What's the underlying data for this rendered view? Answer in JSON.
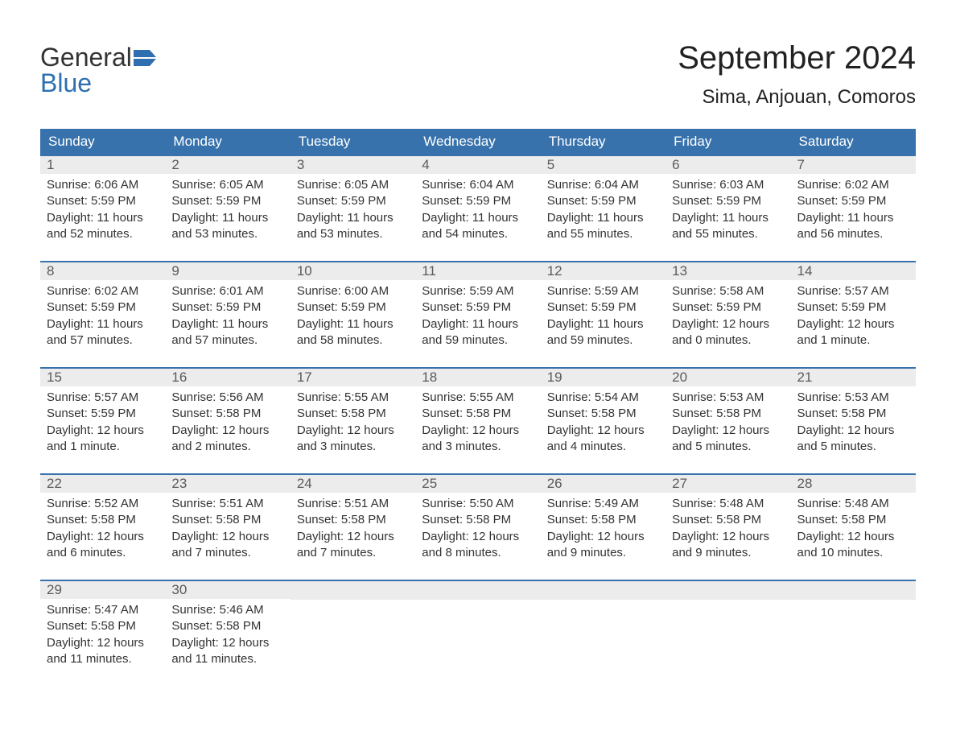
{
  "logo": {
    "word1": "General",
    "word2": "Blue"
  },
  "title": {
    "month": "September 2024",
    "location": "Sima, Anjouan, Comoros"
  },
  "labels": {
    "sunrise": "Sunrise:",
    "sunset": "Sunset:",
    "daylight_prefix": "Daylight:"
  },
  "colors": {
    "header_bg": "#3872ac",
    "header_text": "#ffffff",
    "day_number_bg": "#ececec",
    "day_number_text": "#5a5a5a",
    "body_text": "#333333",
    "border": "#3872ac",
    "logo_blue": "#2f6faf",
    "background": "#ffffff"
  },
  "typography": {
    "title_month_fontsize": 40,
    "title_location_fontsize": 24,
    "header_fontsize": 17,
    "day_number_fontsize": 17,
    "day_content_fontsize": 15,
    "logo_fontsize": 32
  },
  "calendar": {
    "type": "table",
    "day_headers": [
      "Sunday",
      "Monday",
      "Tuesday",
      "Wednesday",
      "Thursday",
      "Friday",
      "Saturday"
    ],
    "weeks": [
      [
        {
          "day": 1,
          "sunrise": "6:06 AM",
          "sunset": "5:59 PM",
          "daylight": "11 hours and 52 minutes."
        },
        {
          "day": 2,
          "sunrise": "6:05 AM",
          "sunset": "5:59 PM",
          "daylight": "11 hours and 53 minutes."
        },
        {
          "day": 3,
          "sunrise": "6:05 AM",
          "sunset": "5:59 PM",
          "daylight": "11 hours and 53 minutes."
        },
        {
          "day": 4,
          "sunrise": "6:04 AM",
          "sunset": "5:59 PM",
          "daylight": "11 hours and 54 minutes."
        },
        {
          "day": 5,
          "sunrise": "6:04 AM",
          "sunset": "5:59 PM",
          "daylight": "11 hours and 55 minutes."
        },
        {
          "day": 6,
          "sunrise": "6:03 AM",
          "sunset": "5:59 PM",
          "daylight": "11 hours and 55 minutes."
        },
        {
          "day": 7,
          "sunrise": "6:02 AM",
          "sunset": "5:59 PM",
          "daylight": "11 hours and 56 minutes."
        }
      ],
      [
        {
          "day": 8,
          "sunrise": "6:02 AM",
          "sunset": "5:59 PM",
          "daylight": "11 hours and 57 minutes."
        },
        {
          "day": 9,
          "sunrise": "6:01 AM",
          "sunset": "5:59 PM",
          "daylight": "11 hours and 57 minutes."
        },
        {
          "day": 10,
          "sunrise": "6:00 AM",
          "sunset": "5:59 PM",
          "daylight": "11 hours and 58 minutes."
        },
        {
          "day": 11,
          "sunrise": "5:59 AM",
          "sunset": "5:59 PM",
          "daylight": "11 hours and 59 minutes."
        },
        {
          "day": 12,
          "sunrise": "5:59 AM",
          "sunset": "5:59 PM",
          "daylight": "11 hours and 59 minutes."
        },
        {
          "day": 13,
          "sunrise": "5:58 AM",
          "sunset": "5:59 PM",
          "daylight": "12 hours and 0 minutes."
        },
        {
          "day": 14,
          "sunrise": "5:57 AM",
          "sunset": "5:59 PM",
          "daylight": "12 hours and 1 minute."
        }
      ],
      [
        {
          "day": 15,
          "sunrise": "5:57 AM",
          "sunset": "5:59 PM",
          "daylight": "12 hours and 1 minute."
        },
        {
          "day": 16,
          "sunrise": "5:56 AM",
          "sunset": "5:58 PM",
          "daylight": "12 hours and 2 minutes."
        },
        {
          "day": 17,
          "sunrise": "5:55 AM",
          "sunset": "5:58 PM",
          "daylight": "12 hours and 3 minutes."
        },
        {
          "day": 18,
          "sunrise": "5:55 AM",
          "sunset": "5:58 PM",
          "daylight": "12 hours and 3 minutes."
        },
        {
          "day": 19,
          "sunrise": "5:54 AM",
          "sunset": "5:58 PM",
          "daylight": "12 hours and 4 minutes."
        },
        {
          "day": 20,
          "sunrise": "5:53 AM",
          "sunset": "5:58 PM",
          "daylight": "12 hours and 5 minutes."
        },
        {
          "day": 21,
          "sunrise": "5:53 AM",
          "sunset": "5:58 PM",
          "daylight": "12 hours and 5 minutes."
        }
      ],
      [
        {
          "day": 22,
          "sunrise": "5:52 AM",
          "sunset": "5:58 PM",
          "daylight": "12 hours and 6 minutes."
        },
        {
          "day": 23,
          "sunrise": "5:51 AM",
          "sunset": "5:58 PM",
          "daylight": "12 hours and 7 minutes."
        },
        {
          "day": 24,
          "sunrise": "5:51 AM",
          "sunset": "5:58 PM",
          "daylight": "12 hours and 7 minutes."
        },
        {
          "day": 25,
          "sunrise": "5:50 AM",
          "sunset": "5:58 PM",
          "daylight": "12 hours and 8 minutes."
        },
        {
          "day": 26,
          "sunrise": "5:49 AM",
          "sunset": "5:58 PM",
          "daylight": "12 hours and 9 minutes."
        },
        {
          "day": 27,
          "sunrise": "5:48 AM",
          "sunset": "5:58 PM",
          "daylight": "12 hours and 9 minutes."
        },
        {
          "day": 28,
          "sunrise": "5:48 AM",
          "sunset": "5:58 PM",
          "daylight": "12 hours and 10 minutes."
        }
      ],
      [
        {
          "day": 29,
          "sunrise": "5:47 AM",
          "sunset": "5:58 PM",
          "daylight": "12 hours and 11 minutes."
        },
        {
          "day": 30,
          "sunrise": "5:46 AM",
          "sunset": "5:58 PM",
          "daylight": "12 hours and 11 minutes."
        },
        null,
        null,
        null,
        null,
        null
      ]
    ]
  }
}
